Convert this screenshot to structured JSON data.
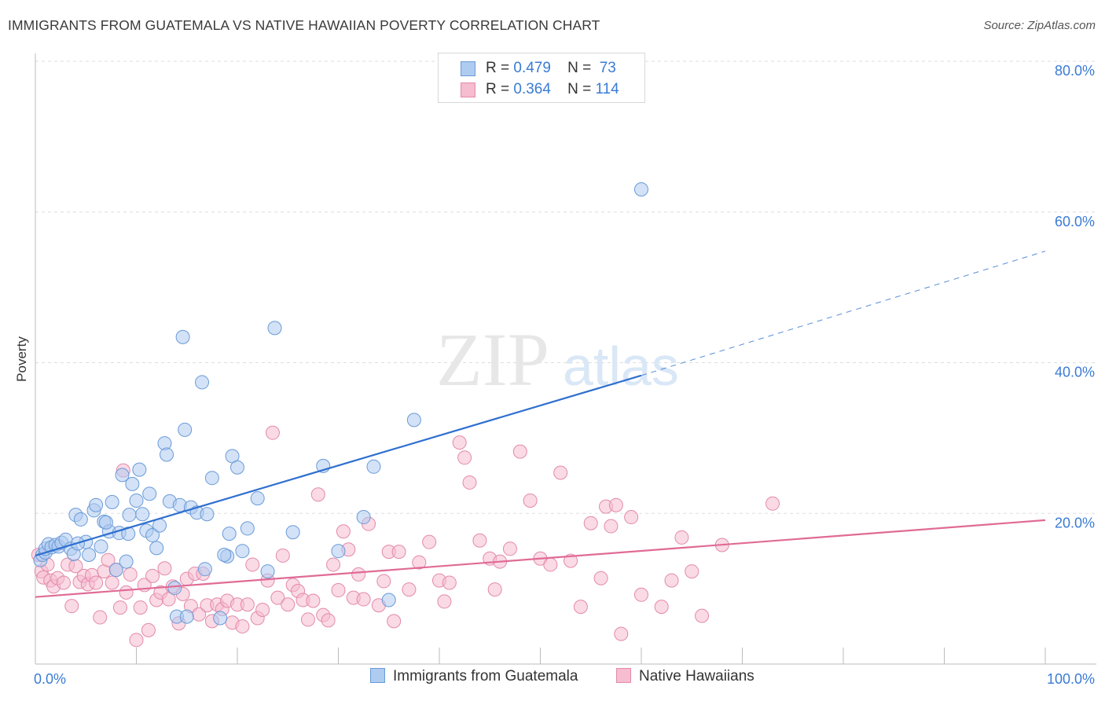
{
  "title": "IMMIGRANTS FROM GUATEMALA VS NATIVE HAWAIIAN POVERTY CORRELATION CHART",
  "source": "Source: ZipAtlas.com",
  "watermark": {
    "zip": "ZIP",
    "atlas": "atlas"
  },
  "colors": {
    "blue_fill": "#aecbf0",
    "blue_stroke": "#6a9bd8",
    "blue_line": "#2f6fcf",
    "pink_fill": "#f6bcd0",
    "pink_stroke": "#e38aaa",
    "pink_line": "#e06b95",
    "tick_text": "#3a7bd5",
    "grid": "#dddddd"
  },
  "legend": {
    "r_label": "R =",
    "n_label": "N =",
    "rows": [
      {
        "r": "0.479",
        "n": "73"
      },
      {
        "r": "0.364",
        "n": "114"
      }
    ]
  },
  "chart_data": {
    "type": "scatter",
    "title": "IMMIGRANTS FROM GUATEMALA VS NATIVE HAWAIIAN POVERTY CORRELATION CHART",
    "xlabel": "",
    "ylabel": "Poverty",
    "xlim": [
      0,
      100
    ],
    "ylim": [
      0,
      80
    ],
    "x_tick_labels": [
      "0.0%",
      "100.0%"
    ],
    "y_ticks": [
      20,
      40,
      60,
      80
    ],
    "y_tick_labels": [
      "20.0%",
      "40.0%",
      "60.0%",
      "80.0%"
    ],
    "grid": true,
    "legend_position": "top-center",
    "series": [
      {
        "name": "Immigrants from Guatemala",
        "r": 0.479,
        "n": 73,
        "trend": {
          "x0": 0,
          "y0": 14.4,
          "x1": 60,
          "y1": 38.3,
          "dash_to_x": 100,
          "dash_to_y": 54.8
        },
        "points": [
          [
            0.5,
            13.8
          ],
          [
            0.7,
            14.5
          ],
          [
            1,
            14.8
          ],
          [
            1,
            15.3
          ],
          [
            1.3,
            15.9
          ],
          [
            1.6,
            15.5
          ],
          [
            2,
            15.8
          ],
          [
            2.3,
            15.6
          ],
          [
            2.6,
            16.1
          ],
          [
            3,
            16.5
          ],
          [
            3.5,
            15.3
          ],
          [
            3.8,
            14.6
          ],
          [
            4,
            19.8
          ],
          [
            4.5,
            19.2
          ],
          [
            5,
            16.2
          ],
          [
            5.3,
            14.5
          ],
          [
            5.8,
            20.4
          ],
          [
            6,
            21.1
          ],
          [
            6.5,
            15.6
          ],
          [
            6.8,
            18.9
          ],
          [
            7.3,
            17.6
          ],
          [
            7.6,
            21.5
          ],
          [
            8,
            12.5
          ],
          [
            8.3,
            17.4
          ],
          [
            8.6,
            25.1
          ],
          [
            9,
            13.6
          ],
          [
            9.3,
            19.8
          ],
          [
            9.6,
            23.9
          ],
          [
            10,
            21.7
          ],
          [
            10.3,
            25.8
          ],
          [
            10.6,
            19.9
          ],
          [
            11,
            17.7
          ],
          [
            11.3,
            22.6
          ],
          [
            11.6,
            17.1
          ],
          [
            12,
            15.4
          ],
          [
            12.3,
            18.4
          ],
          [
            12.8,
            29.3
          ],
          [
            13,
            27.8
          ],
          [
            13.3,
            21.6
          ],
          [
            13.8,
            10.1
          ],
          [
            14,
            6.3
          ],
          [
            14.3,
            21.1
          ],
          [
            14.6,
            43.4
          ],
          [
            14.8,
            31.1
          ],
          [
            15,
            6.3
          ],
          [
            15.4,
            20.8
          ],
          [
            16,
            20.1
          ],
          [
            16.5,
            37.4
          ],
          [
            16.8,
            12.6
          ],
          [
            17,
            19.9
          ],
          [
            17.5,
            24.7
          ],
          [
            18.3,
            6.1
          ],
          [
            19,
            14.3
          ],
          [
            19.2,
            17.3
          ],
          [
            19.5,
            27.6
          ],
          [
            20,
            26.1
          ],
          [
            20.5,
            15.0
          ],
          [
            21,
            18.0
          ],
          [
            22,
            22.0
          ],
          [
            23,
            12.3
          ],
          [
            23.7,
            44.6
          ],
          [
            25.5,
            17.5
          ],
          [
            28.5,
            26.3
          ],
          [
            30,
            15.0
          ],
          [
            32.5,
            19.5
          ],
          [
            33.5,
            26.2
          ],
          [
            35,
            8.5
          ],
          [
            37.5,
            32.4
          ],
          [
            60,
            63.0
          ],
          [
            4.2,
            16.0
          ],
          [
            7,
            18.8
          ],
          [
            9.2,
            17.3
          ],
          [
            18.7,
            14.5
          ]
        ]
      },
      {
        "name": "Native Hawaiians",
        "r": 0.364,
        "n": 114,
        "trend": {
          "x0": 0,
          "y0": 8.9,
          "x1": 100,
          "y1": 19.1
        },
        "points": [
          [
            0.3,
            14.5
          ],
          [
            0.6,
            12.3
          ],
          [
            0.8,
            11.5
          ],
          [
            1.2,
            13.2
          ],
          [
            1.5,
            11.1
          ],
          [
            1.8,
            10.3
          ],
          [
            2.2,
            11.4
          ],
          [
            2.8,
            10.8
          ],
          [
            3.2,
            13.2
          ],
          [
            3.6,
            7.7
          ],
          [
            4,
            13.0
          ],
          [
            4.4,
            10.9
          ],
          [
            4.8,
            11.7
          ],
          [
            5.2,
            10.6
          ],
          [
            5.6,
            11.8
          ],
          [
            6,
            10.8
          ],
          [
            6.4,
            6.2
          ],
          [
            6.8,
            12.3
          ],
          [
            7.2,
            13.8
          ],
          [
            7.6,
            10.8
          ],
          [
            8,
            12.5
          ],
          [
            8.4,
            7.5
          ],
          [
            8.7,
            25.7
          ],
          [
            9,
            9.5
          ],
          [
            9.4,
            11.9
          ],
          [
            10,
            3.2
          ],
          [
            10.4,
            7.5
          ],
          [
            10.8,
            10.5
          ],
          [
            11.2,
            4.5
          ],
          [
            11.6,
            11.7
          ],
          [
            12,
            8.5
          ],
          [
            12.4,
            9.5
          ],
          [
            12.8,
            12.7
          ],
          [
            13.2,
            8.6
          ],
          [
            13.6,
            10.3
          ],
          [
            14.2,
            5.4
          ],
          [
            14.6,
            9.3
          ],
          [
            15,
            11.3
          ],
          [
            15.4,
            7.7
          ],
          [
            15.8,
            12.0
          ],
          [
            16.2,
            6.6
          ],
          [
            16.6,
            12.0
          ],
          [
            17,
            7.8
          ],
          [
            17.5,
            5.7
          ],
          [
            18,
            7.9
          ],
          [
            18.5,
            7.3
          ],
          [
            19,
            8.4
          ],
          [
            19.5,
            5.5
          ],
          [
            20,
            7.9
          ],
          [
            20.5,
            5.0
          ],
          [
            21,
            7.9
          ],
          [
            21.5,
            13.2
          ],
          [
            22,
            6.1
          ],
          [
            22.5,
            7.2
          ],
          [
            23,
            11.1
          ],
          [
            23.5,
            30.7
          ],
          [
            24,
            8.8
          ],
          [
            24.5,
            14.4
          ],
          [
            25,
            7.9
          ],
          [
            25.5,
            10.5
          ],
          [
            26,
            9.7
          ],
          [
            26.5,
            8.5
          ],
          [
            27,
            5.9
          ],
          [
            27.5,
            8.4
          ],
          [
            28,
            22.5
          ],
          [
            28.5,
            6.5
          ],
          [
            29,
            5.8
          ],
          [
            29.5,
            13.2
          ],
          [
            30,
            9.8
          ],
          [
            30.5,
            17.6
          ],
          [
            31,
            15.2
          ],
          [
            31.5,
            8.8
          ],
          [
            32,
            11.9
          ],
          [
            32.5,
            8.6
          ],
          [
            33,
            18.6
          ],
          [
            34,
            7.8
          ],
          [
            34.5,
            11.0
          ],
          [
            35,
            14.9
          ],
          [
            35.5,
            5.7
          ],
          [
            36,
            14.9
          ],
          [
            37,
            9.9
          ],
          [
            38,
            13.5
          ],
          [
            39,
            16.2
          ],
          [
            40,
            11.1
          ],
          [
            40.5,
            8.3
          ],
          [
            41,
            10.8
          ],
          [
            42,
            29.4
          ],
          [
            42.5,
            27.4
          ],
          [
            43,
            24.1
          ],
          [
            44,
            16.4
          ],
          [
            45,
            14.0
          ],
          [
            45.5,
            9.9
          ],
          [
            46,
            13.6
          ],
          [
            47,
            15.3
          ],
          [
            48,
            28.2
          ],
          [
            49,
            21.7
          ],
          [
            50,
            14.0
          ],
          [
            51,
            13.2
          ],
          [
            52,
            25.4
          ],
          [
            53,
            13.7
          ],
          [
            54,
            7.6
          ],
          [
            55,
            18.7
          ],
          [
            56,
            11.4
          ],
          [
            56.5,
            20.9
          ],
          [
            57,
            18.3
          ],
          [
            57.5,
            21.1
          ],
          [
            58,
            4.0
          ],
          [
            59,
            19.5
          ],
          [
            60,
            9.2
          ],
          [
            62,
            7.6
          ],
          [
            63,
            11.1
          ],
          [
            64,
            16.8
          ],
          [
            65,
            12.3
          ],
          [
            66,
            6.4
          ],
          [
            68,
            15.8
          ],
          [
            73,
            21.3
          ]
        ]
      }
    ]
  },
  "bottom_legend": [
    {
      "label": "Immigrants from Guatemala"
    },
    {
      "label": "Native Hawaiians"
    }
  ]
}
